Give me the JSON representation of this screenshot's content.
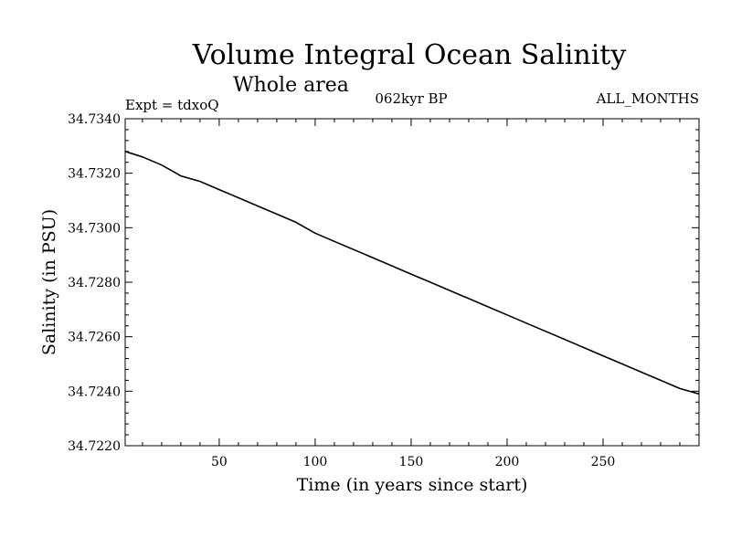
{
  "chart_data": {
    "type": "line",
    "title": "Volume Integral Ocean Salinity",
    "subtitle": "Whole area",
    "annotations": {
      "experiment": "Expt = tdxoQ",
      "period": "062kyr BP",
      "months": "ALL_MONTHS"
    },
    "xlabel": "Time (in years since start)",
    "ylabel": "Salinity (in PSU)",
    "xlim": [
      1,
      300
    ],
    "ylim": [
      34.722,
      34.734
    ],
    "xticks": [
      50,
      100,
      150,
      200,
      250
    ],
    "yticks": [
      "34.7220",
      "34.7240",
      "34.7260",
      "34.7280",
      "34.7300",
      "34.7320",
      "34.7340"
    ],
    "grid": false,
    "series": [
      {
        "color": "#000000",
        "x": [
          1,
          10,
          20,
          30,
          40,
          50,
          60,
          70,
          80,
          90,
          100,
          110,
          120,
          130,
          140,
          150,
          160,
          170,
          180,
          190,
          200,
          210,
          220,
          230,
          240,
          250,
          260,
          270,
          280,
          290,
          300
        ],
        "values": [
          34.7328,
          34.7326,
          34.7323,
          34.7319,
          34.7317,
          34.7314,
          34.7311,
          34.7308,
          34.7305,
          34.7302,
          34.7298,
          34.7295,
          34.7292,
          34.7289,
          34.7286,
          34.7283,
          34.728,
          34.7277,
          34.7274,
          34.7271,
          34.7268,
          34.7265,
          34.7262,
          34.7259,
          34.7256,
          34.7253,
          34.725,
          34.7247,
          34.7244,
          34.7241,
          34.7239
        ]
      }
    ]
  }
}
